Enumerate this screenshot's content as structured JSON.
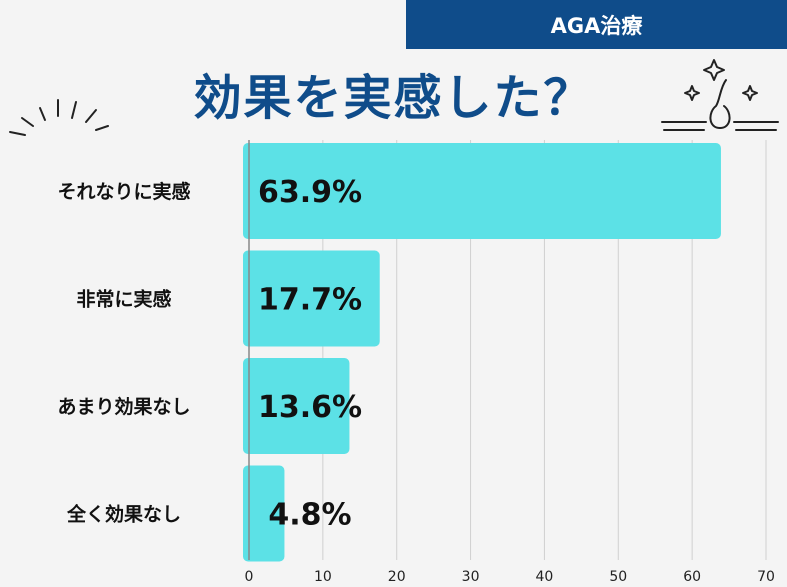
{
  "header": {
    "tag": "AGA治療"
  },
  "icons": {
    "left": "sparkle-lines-icon",
    "right": "hair-follicle-icon"
  },
  "colors": {
    "bar": "#5ce1e6",
    "brand": "#0f4c8a"
  },
  "chart_data": {
    "type": "bar",
    "orientation": "horizontal",
    "title": "効果を実感した？",
    "categories": [
      "それなりに実感",
      "非常に実感",
      "あまり効果なし",
      "全く効果なし"
    ],
    "values": [
      63.9,
      17.7,
      13.6,
      4.8
    ],
    "value_labels": [
      "63.9%",
      "17.7%",
      "13.6%",
      "4.8%"
    ],
    "xlim": [
      0,
      70
    ],
    "xticks": [
      "0",
      "10",
      "20",
      "30",
      "40",
      "50",
      "60",
      "70"
    ],
    "grid": true
  }
}
